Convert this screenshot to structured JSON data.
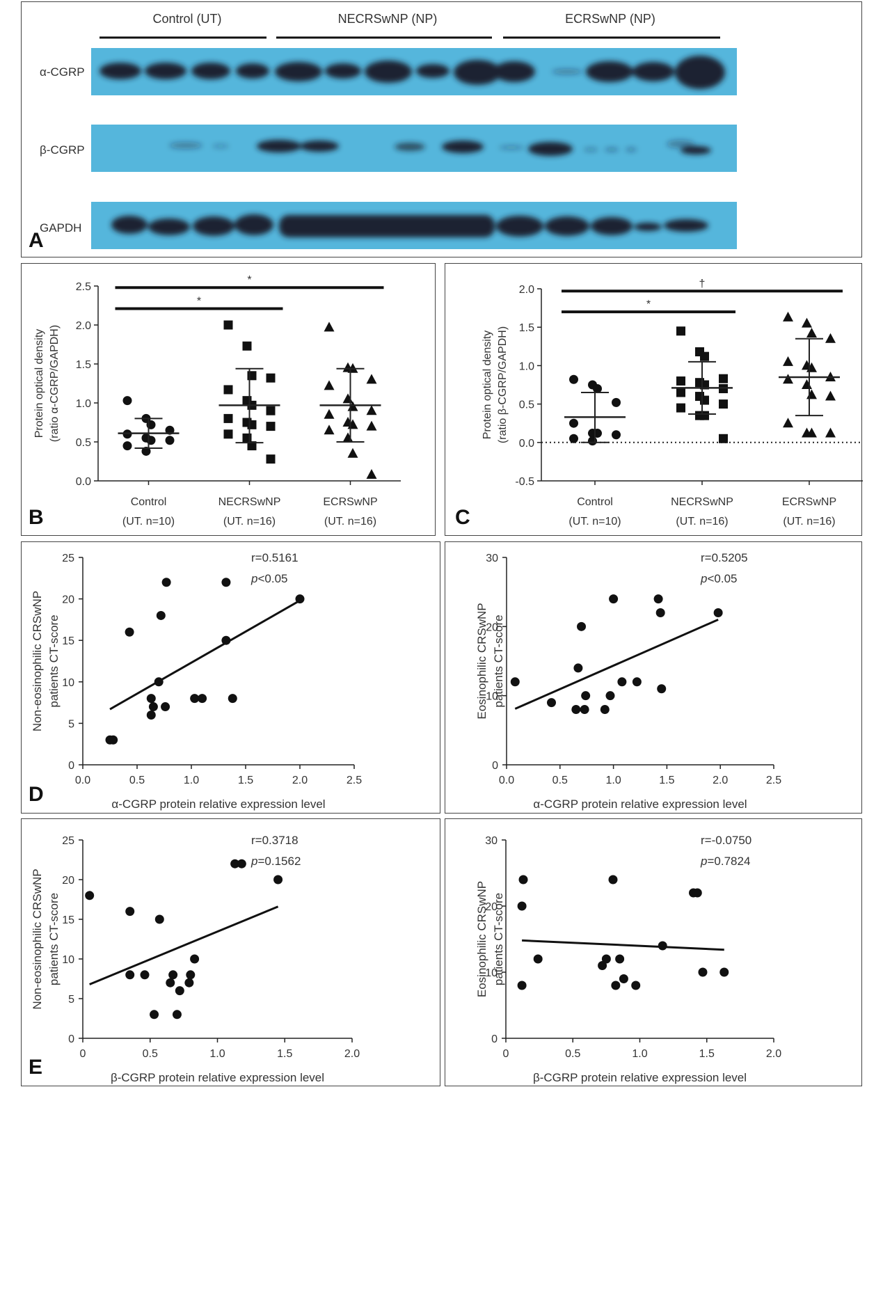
{
  "figure": {
    "panel_letters": {
      "A": "A",
      "B": "B",
      "C": "C",
      "D": "D",
      "E": "E"
    }
  },
  "blot": {
    "groups": [
      "Control (UT)",
      "NECRSwNP (NP)",
      "ECRSwNP (NP)"
    ],
    "rows": [
      "α-CGRP",
      "β-CGRP",
      "GAPDH"
    ],
    "colors": {
      "membrane": "#4fb3d9",
      "band": "#1b2230"
    }
  },
  "chart_data": [
    {
      "id": "B",
      "type": "scatter",
      "ylabel_lines": [
        "Protein optical density",
        "(ratio α-CGRP/GAPDH)"
      ],
      "ylim": [
        0,
        2.5
      ],
      "yticks": [
        "0.0",
        "0.5",
        "1.0",
        "1.5",
        "2.0",
        "2.5"
      ],
      "yticks_values": [
        0,
        0.5,
        1.0,
        1.5,
        2.0,
        2.5
      ],
      "groups": [
        {
          "name": "Control",
          "sub": "(UT. n=10)",
          "marker": "circle",
          "mean": 0.61,
          "sd_low": 0.42,
          "sd_high": 0.8,
          "values": [
            1.03,
            0.8,
            0.72,
            0.65,
            0.6,
            0.55,
            0.52,
            0.52,
            0.45,
            0.38
          ]
        },
        {
          "name": "NECRSwNP",
          "sub": "(UT. n=16)",
          "marker": "square",
          "mean": 0.97,
          "sd_low": 0.49,
          "sd_high": 1.44,
          "values": [
            2.0,
            1.73,
            1.35,
            1.32,
            1.17,
            1.03,
            0.97,
            0.9,
            0.8,
            0.75,
            0.72,
            0.7,
            0.6,
            0.55,
            0.45,
            0.28
          ]
        },
        {
          "name": "ECRSwNP",
          "sub": "(UT. n=16)",
          "marker": "triangle",
          "mean": 0.97,
          "sd_low": 0.5,
          "sd_high": 1.44,
          "values": [
            1.97,
            1.45,
            1.44,
            1.3,
            1.22,
            1.05,
            0.95,
            0.9,
            0.85,
            0.75,
            0.72,
            0.7,
            0.65,
            0.55,
            0.35,
            0.08
          ]
        }
      ],
      "significance": [
        {
          "from": 0,
          "to": 1,
          "y": 2.21,
          "label": "*"
        },
        {
          "from": 0,
          "to": 2,
          "y": 2.48,
          "label": "*"
        }
      ]
    },
    {
      "id": "C",
      "type": "scatter",
      "ylabel_lines": [
        "Protein optical density",
        "(ratio β-CGRP/GAPDH)"
      ],
      "ylim": [
        -0.5,
        2.0
      ],
      "yticks": [
        "-0.5",
        "0.0",
        "0.5",
        "1.0",
        "1.5",
        "2.0"
      ],
      "yticks_values": [
        -0.5,
        0,
        0.5,
        1.0,
        1.5,
        2.0
      ],
      "zero_line": true,
      "groups": [
        {
          "name": "Control",
          "sub": "(UT. n=10)",
          "marker": "circle",
          "mean": 0.33,
          "sd_low": 0.0,
          "sd_high": 0.65,
          "values": [
            0.82,
            0.75,
            0.7,
            0.52,
            0.25,
            0.12,
            0.12,
            0.1,
            0.05,
            0.02
          ]
        },
        {
          "name": "NECRSwNP",
          "sub": "(UT. n=16)",
          "marker": "square",
          "mean": 0.71,
          "sd_low": 0.37,
          "sd_high": 1.05,
          "values": [
            1.45,
            1.18,
            1.12,
            0.83,
            0.8,
            0.78,
            0.75,
            0.7,
            0.65,
            0.6,
            0.55,
            0.5,
            0.45,
            0.35,
            0.35,
            0.05
          ]
        },
        {
          "name": "ECRSwNP",
          "sub": "(UT. n=16)",
          "marker": "triangle",
          "mean": 0.85,
          "sd_low": 0.35,
          "sd_high": 1.35,
          "values": [
            1.63,
            1.55,
            1.42,
            1.35,
            1.05,
            1.0,
            0.97,
            0.85,
            0.82,
            0.75,
            0.62,
            0.6,
            0.25,
            0.12,
            0.12,
            0.12
          ]
        }
      ],
      "significance": [
        {
          "from": 0,
          "to": 1,
          "y": 1.7,
          "label": "*"
        },
        {
          "from": 0,
          "to": 2,
          "y": 1.97,
          "label": "†"
        }
      ]
    },
    {
      "id": "D-left",
      "type": "scatter",
      "xlabel": "α-CGRP protein relative expression level",
      "ylabel_lines": [
        "Non-eosinophilic CRSwNP",
        "patients CT-score"
      ],
      "xlim": [
        0,
        2.5
      ],
      "ylim": [
        0,
        25
      ],
      "xticks": [
        "0.0",
        "0.5",
        "1.0",
        "1.5",
        "2.0",
        "2.5"
      ],
      "xticks_values": [
        0,
        0.5,
        1.0,
        1.5,
        2.0,
        2.5
      ],
      "yticks": [
        "0",
        "5",
        "10",
        "15",
        "20",
        "25"
      ],
      "yticks_values": [
        0,
        5,
        10,
        15,
        20,
        25
      ],
      "r_text": "r=0.5161",
      "p_prefix": "p",
      "p_text": "<0.05",
      "points": [
        [
          0.25,
          3
        ],
        [
          0.28,
          3
        ],
        [
          0.43,
          16
        ],
        [
          0.63,
          8
        ],
        [
          0.63,
          6
        ],
        [
          0.65,
          7
        ],
        [
          0.7,
          10
        ],
        [
          0.72,
          18
        ],
        [
          0.76,
          7
        ],
        [
          0.77,
          22
        ],
        [
          1.03,
          8
        ],
        [
          1.1,
          8
        ],
        [
          1.32,
          22
        ],
        [
          1.32,
          15
        ],
        [
          1.38,
          8
        ],
        [
          2.0,
          20
        ]
      ],
      "fit": [
        [
          0.25,
          6.7
        ],
        [
          2.0,
          19.8
        ]
      ]
    },
    {
      "id": "D-right",
      "type": "scatter",
      "xlabel": "α-CGRP protein relative expression level",
      "ylabel_lines": [
        "Eosinophilic CRSwNP",
        "patients CT-score"
      ],
      "xlim": [
        0,
        2.5
      ],
      "ylim": [
        0,
        30
      ],
      "xticks": [
        "0.0",
        "0.5",
        "1.0",
        "1.5",
        "2.0",
        "2.5"
      ],
      "xticks_values": [
        0,
        0.5,
        1.0,
        1.5,
        2.0,
        2.5
      ],
      "yticks": [
        "0",
        "10",
        "20",
        "30"
      ],
      "yticks_values": [
        0,
        10,
        20,
        30
      ],
      "r_text": "r=0.5205",
      "p_prefix": "p",
      "p_text": "<0.05",
      "points": [
        [
          0.08,
          12
        ],
        [
          0.42,
          9
        ],
        [
          0.65,
          8
        ],
        [
          0.67,
          14
        ],
        [
          0.7,
          20
        ],
        [
          0.73,
          8
        ],
        [
          0.74,
          10
        ],
        [
          0.92,
          8
        ],
        [
          0.97,
          10
        ],
        [
          1.0,
          24
        ],
        [
          1.08,
          12
        ],
        [
          1.22,
          12
        ],
        [
          1.42,
          24
        ],
        [
          1.44,
          22
        ],
        [
          1.45,
          11
        ],
        [
          1.98,
          22
        ]
      ],
      "fit": [
        [
          0.08,
          8.1
        ],
        [
          1.98,
          21.0
        ]
      ]
    },
    {
      "id": "E-left",
      "type": "scatter",
      "xlabel": "β-CGRP protein relative expression level",
      "ylabel_lines": [
        "Non-eosinophilic CRSwNP",
        "patients CT-score"
      ],
      "xlim": [
        0,
        2.0
      ],
      "ylim": [
        0,
        25
      ],
      "xticks": [
        "0",
        "0.5",
        "1.0",
        "1.5",
        "2.0"
      ],
      "xticks_values": [
        0,
        0.5,
        1.0,
        1.5,
        2.0
      ],
      "yticks": [
        "0",
        "5",
        "10",
        "15",
        "20",
        "25"
      ],
      "yticks_values": [
        0,
        5,
        10,
        15,
        20,
        25
      ],
      "r_text": "r=0.3718",
      "p_prefix": "p",
      "p_text": "=0.1562",
      "points": [
        [
          0.05,
          18
        ],
        [
          0.35,
          16
        ],
        [
          0.35,
          8
        ],
        [
          0.46,
          8
        ],
        [
          0.53,
          3
        ],
        [
          0.57,
          15
        ],
        [
          0.65,
          7
        ],
        [
          0.67,
          8
        ],
        [
          0.7,
          3
        ],
        [
          0.72,
          6
        ],
        [
          0.79,
          7
        ],
        [
          0.8,
          8
        ],
        [
          0.83,
          10
        ],
        [
          1.13,
          22
        ],
        [
          1.18,
          22
        ],
        [
          1.45,
          20
        ]
      ],
      "fit": [
        [
          0.05,
          6.8
        ],
        [
          1.45,
          16.6
        ]
      ]
    },
    {
      "id": "E-right",
      "type": "scatter",
      "xlabel": "β-CGRP protein relative expression level",
      "ylabel_lines": [
        "Eosinophilic CRSwNP",
        "patients CT-score"
      ],
      "xlim": [
        0,
        2.0
      ],
      "ylim": [
        0,
        30
      ],
      "xticks": [
        "0",
        "0.5",
        "1.0",
        "1.5",
        "2.0"
      ],
      "xticks_values": [
        0,
        0.5,
        1.0,
        1.5,
        2.0
      ],
      "yticks": [
        "0",
        "10",
        "20",
        "30"
      ],
      "yticks_values": [
        0,
        10,
        20,
        30
      ],
      "r_text": "r=-0.0750",
      "p_prefix": "p",
      "p_text": "=0.7824",
      "points": [
        [
          0.12,
          20
        ],
        [
          0.12,
          8
        ],
        [
          0.13,
          24
        ],
        [
          0.24,
          12
        ],
        [
          0.72,
          11
        ],
        [
          0.75,
          12
        ],
        [
          0.8,
          24
        ],
        [
          0.82,
          8
        ],
        [
          0.85,
          12
        ],
        [
          0.88,
          9
        ],
        [
          0.97,
          8
        ],
        [
          1.17,
          14
        ],
        [
          1.4,
          22
        ],
        [
          1.43,
          22
        ],
        [
          1.47,
          10
        ],
        [
          1.63,
          10
        ]
      ],
      "fit": [
        [
          0.12,
          14.8
        ],
        [
          1.63,
          13.4
        ]
      ]
    }
  ]
}
